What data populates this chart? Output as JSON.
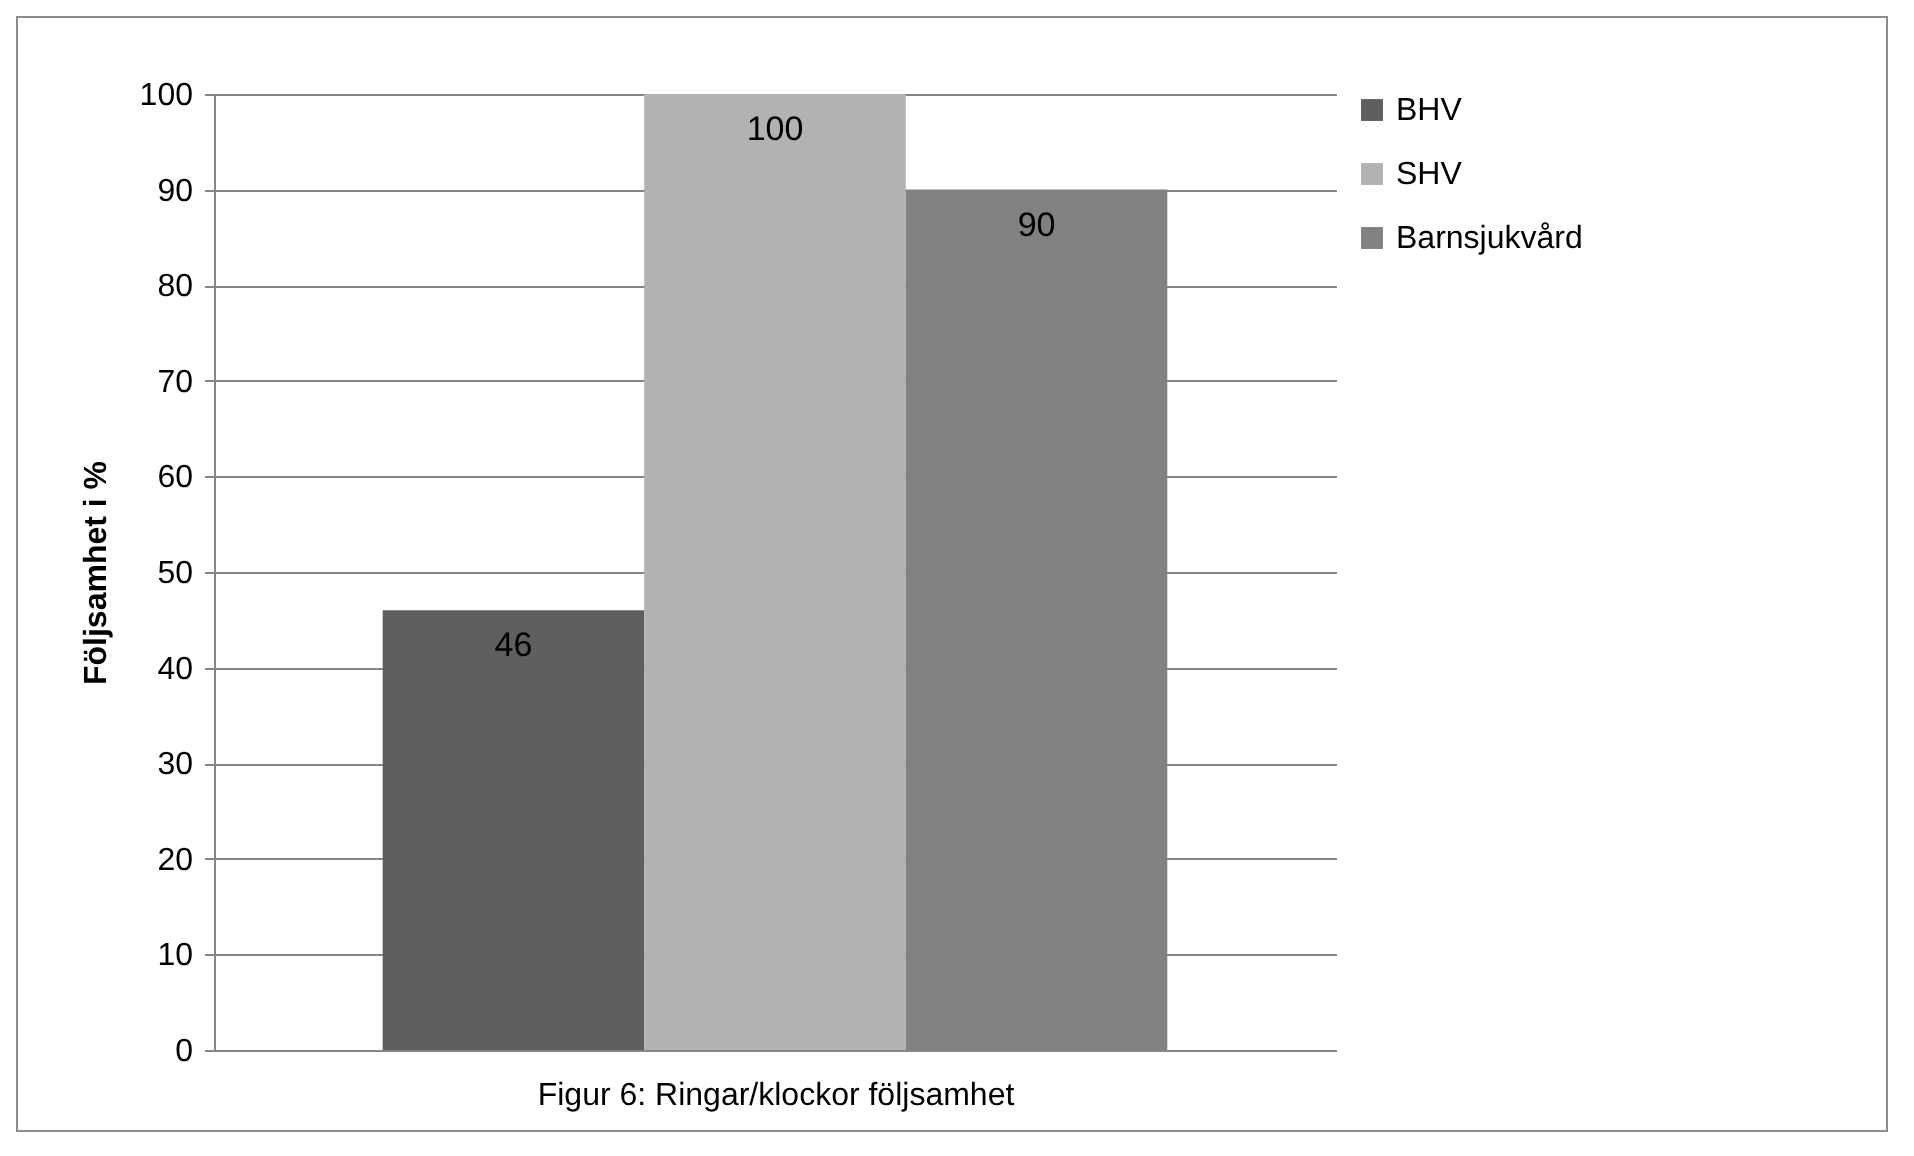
{
  "chart_data": {
    "type": "bar",
    "xlabel": "Figur 6: Ringar/klockor följsamhet",
    "ylabel": "Följsamhet i %",
    "categories": [
      null
    ],
    "series": [
      {
        "name": "BHV",
        "color": "#5f5f5f",
        "values": [
          46
        ]
      },
      {
        "name": "SHV",
        "color": "#b2b2b2",
        "values": [
          100
        ]
      },
      {
        "name": "Barnsjukvård",
        "color": "#818181",
        "values": [
          90
        ]
      }
    ],
    "ylim": [
      0,
      100
    ],
    "yticks": [
      0,
      10,
      20,
      30,
      40,
      50,
      60,
      70,
      80,
      90,
      100
    ],
    "grid": "y",
    "legend": "right",
    "data_labels": true
  }
}
